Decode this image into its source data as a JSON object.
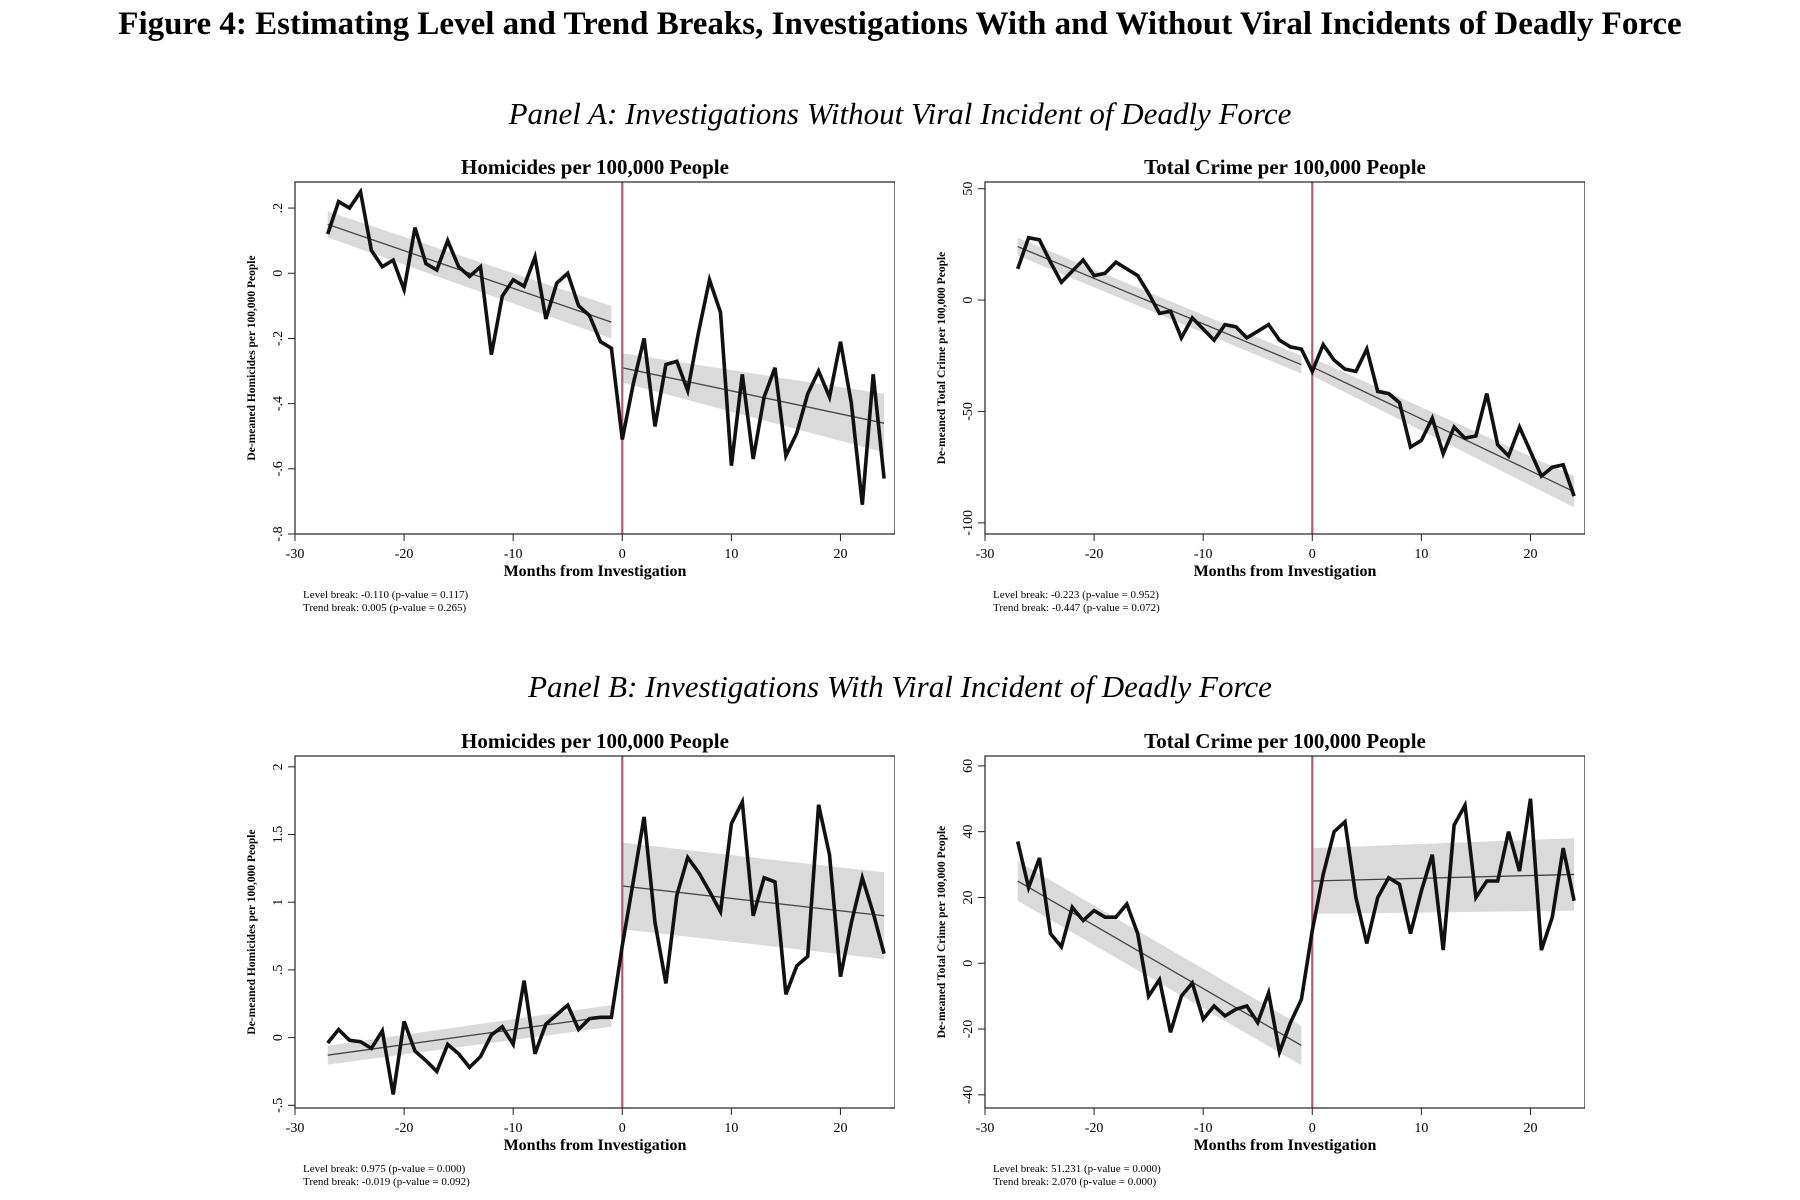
{
  "figure_title": "Figure 4: Estimating Level and Trend Breaks, Investigations With and Without Viral Incidents of Deadly Force",
  "panels": [
    {
      "title": "Panel A: Investigations Without Viral Incident of Deadly Force"
    },
    {
      "title": "Panel B: Investigations With Viral Incident of Deadly Force"
    }
  ],
  "colors": {
    "line": "#111111",
    "break_line": "#b5577a",
    "band": "#d6d6d6",
    "fit": "#444444"
  },
  "chart_data": [
    {
      "type": "line",
      "title": "Homicides per 100,000 People",
      "xlabel": "Months from Investigation",
      "ylabel": "De-meaned Homicides per 100,000 People",
      "xlim": [
        -30,
        25
      ],
      "ylim": [
        -0.8,
        0.28
      ],
      "xticks": [
        -30,
        -20,
        -10,
        0,
        10,
        20
      ],
      "yticks": [
        -0.8,
        -0.6,
        -0.4,
        -0.2,
        0,
        0.2
      ],
      "ytick_labels": [
        "-.8",
        "-.6",
        "-.4",
        "-.2",
        "0",
        ".2"
      ],
      "grid": false,
      "notes": [
        "Level break: -0.110 (p-value = 0.117)",
        "Trend break: 0.005 (p-value = 0.265)"
      ],
      "x": [
        -27,
        -26,
        -25,
        -24,
        -23,
        -22,
        -21,
        -20,
        -19,
        -18,
        -17,
        -16,
        -15,
        -14,
        -13,
        -12,
        -11,
        -10,
        -9,
        -8,
        -7,
        -6,
        -5,
        -4,
        -3,
        -2,
        -1,
        0,
        1,
        2,
        3,
        4,
        5,
        6,
        7,
        8,
        9,
        10,
        11,
        12,
        13,
        14,
        15,
        16,
        17,
        18,
        19,
        20,
        21,
        22,
        23,
        24
      ],
      "y": [
        0.12,
        0.22,
        0.2,
        0.25,
        0.07,
        0.02,
        0.04,
        -0.05,
        0.14,
        0.03,
        0.01,
        0.1,
        0.02,
        -0.01,
        0.02,
        -0.25,
        -0.07,
        -0.02,
        -0.04,
        0.05,
        -0.14,
        -0.03,
        0.0,
        -0.1,
        -0.13,
        -0.21,
        -0.23,
        -0.51,
        -0.34,
        -0.2,
        -0.47,
        -0.28,
        -0.27,
        -0.36,
        -0.18,
        -0.02,
        -0.12,
        -0.59,
        -0.31,
        -0.57,
        -0.38,
        -0.29,
        -0.56,
        -0.49,
        -0.37,
        -0.3,
        -0.38,
        -0.21,
        -0.4,
        -0.71,
        -0.31,
        -0.63
      ],
      "fit_pre": [
        [
          -27,
          0.15
        ],
        [
          -1,
          -0.15
        ]
      ],
      "fit_post": [
        [
          0,
          -0.29
        ],
        [
          24,
          -0.46
        ]
      ],
      "band_pre": [
        0.04,
        0.05
      ],
      "band_post": [
        0.045,
        0.09
      ]
    },
    {
      "type": "line",
      "title": "Total Crime per 100,000 People",
      "xlabel": "Months from Investigation",
      "ylabel": "De-meaned Total Crime per 100,000 People",
      "xlim": [
        -30,
        25
      ],
      "ylim": [
        -105,
        53
      ],
      "xticks": [
        -30,
        -20,
        -10,
        0,
        10,
        20
      ],
      "yticks": [
        -100,
        -50,
        0,
        50
      ],
      "ytick_labels": [
        "-100",
        "-50",
        "0",
        "50"
      ],
      "grid": false,
      "notes": [
        "Level break: -0.223 (p-value = 0.952)",
        "Trend break: -0.447 (p-value = 0.072)"
      ],
      "x": [
        -27,
        -26,
        -25,
        -24,
        -23,
        -22,
        -21,
        -20,
        -19,
        -18,
        -17,
        -16,
        -15,
        -14,
        -13,
        -12,
        -11,
        -10,
        -9,
        -8,
        -7,
        -6,
        -5,
        -4,
        -3,
        -2,
        -1,
        0,
        1,
        2,
        3,
        4,
        5,
        6,
        7,
        8,
        9,
        10,
        11,
        12,
        13,
        14,
        15,
        16,
        17,
        18,
        19,
        20,
        21,
        22,
        23,
        24
      ],
      "y": [
        14,
        28,
        27,
        17,
        8,
        13,
        18,
        11,
        12,
        17,
        14,
        11,
        3,
        -6,
        -5,
        -17,
        -8,
        -13,
        -18,
        -11,
        -12,
        -17,
        -14,
        -11,
        -18,
        -21,
        -22,
        -32,
        -20,
        -27,
        -31,
        -32,
        -22,
        -41,
        -42,
        -46,
        -66,
        -63,
        -53,
        -69,
        -57,
        -62,
        -61,
        -42,
        -65,
        -70,
        -57,
        -68,
        -79,
        -75,
        -74,
        -88
      ],
      "fit_pre": [
        [
          -27,
          24
        ],
        [
          -1,
          -29
        ]
      ],
      "fit_post": [
        [
          0,
          -30
        ],
        [
          24,
          -86
        ]
      ],
      "band_pre": [
        4,
        4
      ],
      "band_post": [
        4,
        7
      ]
    },
    {
      "type": "line",
      "title": "Homicides per 100,000 People",
      "xlabel": "Months from Investigation",
      "ylabel": "De-meaned Homicides per 100,000 People",
      "xlim": [
        -30,
        25
      ],
      "ylim": [
        -0.52,
        2.08
      ],
      "xticks": [
        -30,
        -20,
        -10,
        0,
        10,
        20
      ],
      "yticks": [
        -0.5,
        0,
        0.5,
        1,
        1.5,
        2
      ],
      "ytick_labels": [
        "-.5",
        "0",
        ".5",
        "1",
        "1.5",
        "2"
      ],
      "grid": false,
      "notes": [
        "Level break: 0.975 (p-value = 0.000)",
        "Trend break: -0.019 (p-value = 0.092)"
      ],
      "x": [
        -27,
        -26,
        -25,
        -24,
        -23,
        -22,
        -21,
        -20,
        -19,
        -18,
        -17,
        -16,
        -15,
        -14,
        -13,
        -12,
        -11,
        -10,
        -9,
        -8,
        -7,
        -6,
        -5,
        -4,
        -3,
        -2,
        -1,
        0,
        1,
        2,
        3,
        4,
        5,
        6,
        7,
        8,
        9,
        10,
        11,
        12,
        13,
        14,
        15,
        16,
        17,
        18,
        19,
        20,
        21,
        22,
        23,
        24
      ],
      "y": [
        -0.04,
        0.06,
        -0.02,
        -0.03,
        -0.08,
        0.05,
        -0.42,
        0.12,
        -0.1,
        -0.17,
        -0.25,
        -0.05,
        -0.12,
        -0.22,
        -0.14,
        0.02,
        0.08,
        -0.05,
        0.42,
        -0.12,
        0.1,
        0.17,
        0.24,
        0.06,
        0.14,
        0.15,
        0.15,
        0.68,
        1.15,
        1.63,
        0.85,
        0.4,
        1.05,
        1.33,
        1.22,
        1.08,
        0.93,
        1.58,
        1.74,
        0.9,
        1.18,
        1.15,
        0.32,
        0.53,
        0.6,
        1.72,
        1.35,
        0.45,
        0.85,
        1.18,
        0.92,
        0.62
      ],
      "fit_pre": [
        [
          -27,
          -0.13
        ],
        [
          -1,
          0.16
        ]
      ],
      "fit_post": [
        [
          0,
          1.12
        ],
        [
          24,
          0.9
        ]
      ],
      "band_pre": [
        0.07,
        0.08
      ],
      "band_post": [
        0.32,
        0.32
      ]
    },
    {
      "type": "line",
      "title": "Total Crime per 100,000 People",
      "xlabel": "Months from Investigation",
      "ylabel": "De-meaned Total Crime per 100,000 People",
      "xlim": [
        -30,
        25
      ],
      "ylim": [
        -44,
        63
      ],
      "xticks": [
        -30,
        -20,
        -10,
        0,
        10,
        20
      ],
      "yticks": [
        -40,
        -20,
        0,
        20,
        40,
        60
      ],
      "ytick_labels": [
        "-40",
        "-20",
        "0",
        "20",
        "40",
        "60"
      ],
      "grid": false,
      "notes": [
        "Level break: 51.231 (p-value = 0.000)",
        "Trend break: 2.070 (p-value = 0.000)"
      ],
      "x": [
        -27,
        -26,
        -25,
        -24,
        -23,
        -22,
        -21,
        -20,
        -19,
        -18,
        -17,
        -16,
        -15,
        -14,
        -13,
        -12,
        -11,
        -10,
        -9,
        -8,
        -7,
        -6,
        -5,
        -4,
        -3,
        -2,
        -1,
        0,
        1,
        2,
        3,
        4,
        5,
        6,
        7,
        8,
        9,
        10,
        11,
        12,
        13,
        14,
        15,
        16,
        17,
        18,
        19,
        20,
        21,
        22,
        23,
        24
      ],
      "y": [
        37,
        23,
        32,
        9,
        5,
        17,
        13,
        16,
        14,
        14,
        18,
        9,
        -10,
        -5,
        -21,
        -10,
        -6,
        -17,
        -13,
        -16,
        -14,
        -13,
        -18,
        -9,
        -27,
        -18,
        -11,
        10,
        27,
        40,
        43,
        20,
        6,
        20,
        26,
        24,
        9,
        22,
        33,
        4,
        42,
        48,
        20,
        25,
        25,
        40,
        28,
        50,
        4,
        14,
        35,
        19
      ],
      "fit_pre": [
        [
          -27,
          25
        ],
        [
          -1,
          -25
        ]
      ],
      "fit_post": [
        [
          0,
          25
        ],
        [
          24,
          27
        ]
      ],
      "band_pre": [
        6,
        6
      ],
      "band_post": [
        10,
        11
      ]
    }
  ]
}
